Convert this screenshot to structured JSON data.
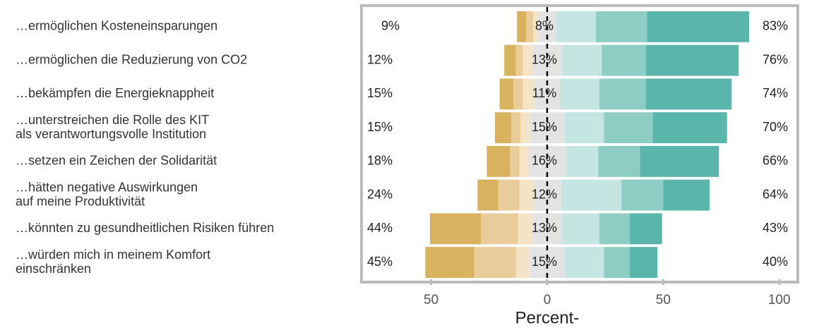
{
  "chart_data": {
    "type": "diverging_stacked_bar",
    "categories": [
      [
        "…ermöglichen Kosteneinsparungen"
      ],
      [
        "…ermöglichen die Reduzierung von CO2"
      ],
      [
        "…bekämpfen die Energieknappheit"
      ],
      [
        "…unterstreichen die Rolle des KIT",
        "als verantwortungsvolle Institution"
      ],
      [
        "…setzen ein Zeichen der Solidarität"
      ],
      [
        "…hätten negative Auswirkungen",
        "auf meine Produktivität"
      ],
      [
        "…könnten zu gesundheitlichen Risiken führen"
      ],
      [
        "…würden mich in meinem Komfort",
        "einschränken"
      ]
    ],
    "series": [
      {
        "color": "#d8b25f",
        "values": [
          4,
          5,
          6,
          7,
          10,
          9,
          22,
          21
        ]
      },
      {
        "color": "#e8cc99",
        "values": [
          3,
          3,
          4,
          4,
          4,
          9,
          16,
          18
        ]
      },
      {
        "color": "#f4e3c4",
        "values": [
          2,
          4,
          5,
          4,
          4,
          6,
          6,
          6
        ]
      },
      {
        "color": "#e3e3e3",
        "values": [
          8,
          13,
          11,
          15,
          16,
          12,
          13,
          15
        ],
        "value_labels": [
          "8%",
          "13%",
          "11%",
          "15%",
          "16%",
          "12%",
          "13%",
          "15%"
        ]
      },
      {
        "color": "#c5e5e3",
        "values": [
          17,
          17,
          17,
          17,
          14,
          26,
          16,
          17
        ]
      },
      {
        "color": "#8ecdc4",
        "values": [
          22,
          19,
          20,
          21,
          18,
          18,
          13,
          11
        ]
      },
      {
        "color": "#5ab5aa",
        "values": [
          44,
          40,
          37,
          32,
          34,
          20,
          14,
          12
        ]
      }
    ],
    "left_totals": {
      "values": [
        9,
        12,
        15,
        15,
        18,
        24,
        44,
        45
      ],
      "value_labels": [
        "9%",
        "12%",
        "15%",
        "15%",
        "18%",
        "24%",
        "44%",
        "45%"
      ]
    },
    "right_totals": {
      "values": [
        83,
        76,
        74,
        70,
        66,
        64,
        43,
        40
      ],
      "value_labels": [
        "83%",
        "76%",
        "74%",
        "70%",
        "66%",
        "64%",
        "43%",
        "40%"
      ]
    },
    "xlabel": "Percent-",
    "xlim": [
      -80,
      108
    ],
    "xticks": [
      {
        "value": -50,
        "label": "50"
      },
      0,
      50,
      100
    ]
  }
}
